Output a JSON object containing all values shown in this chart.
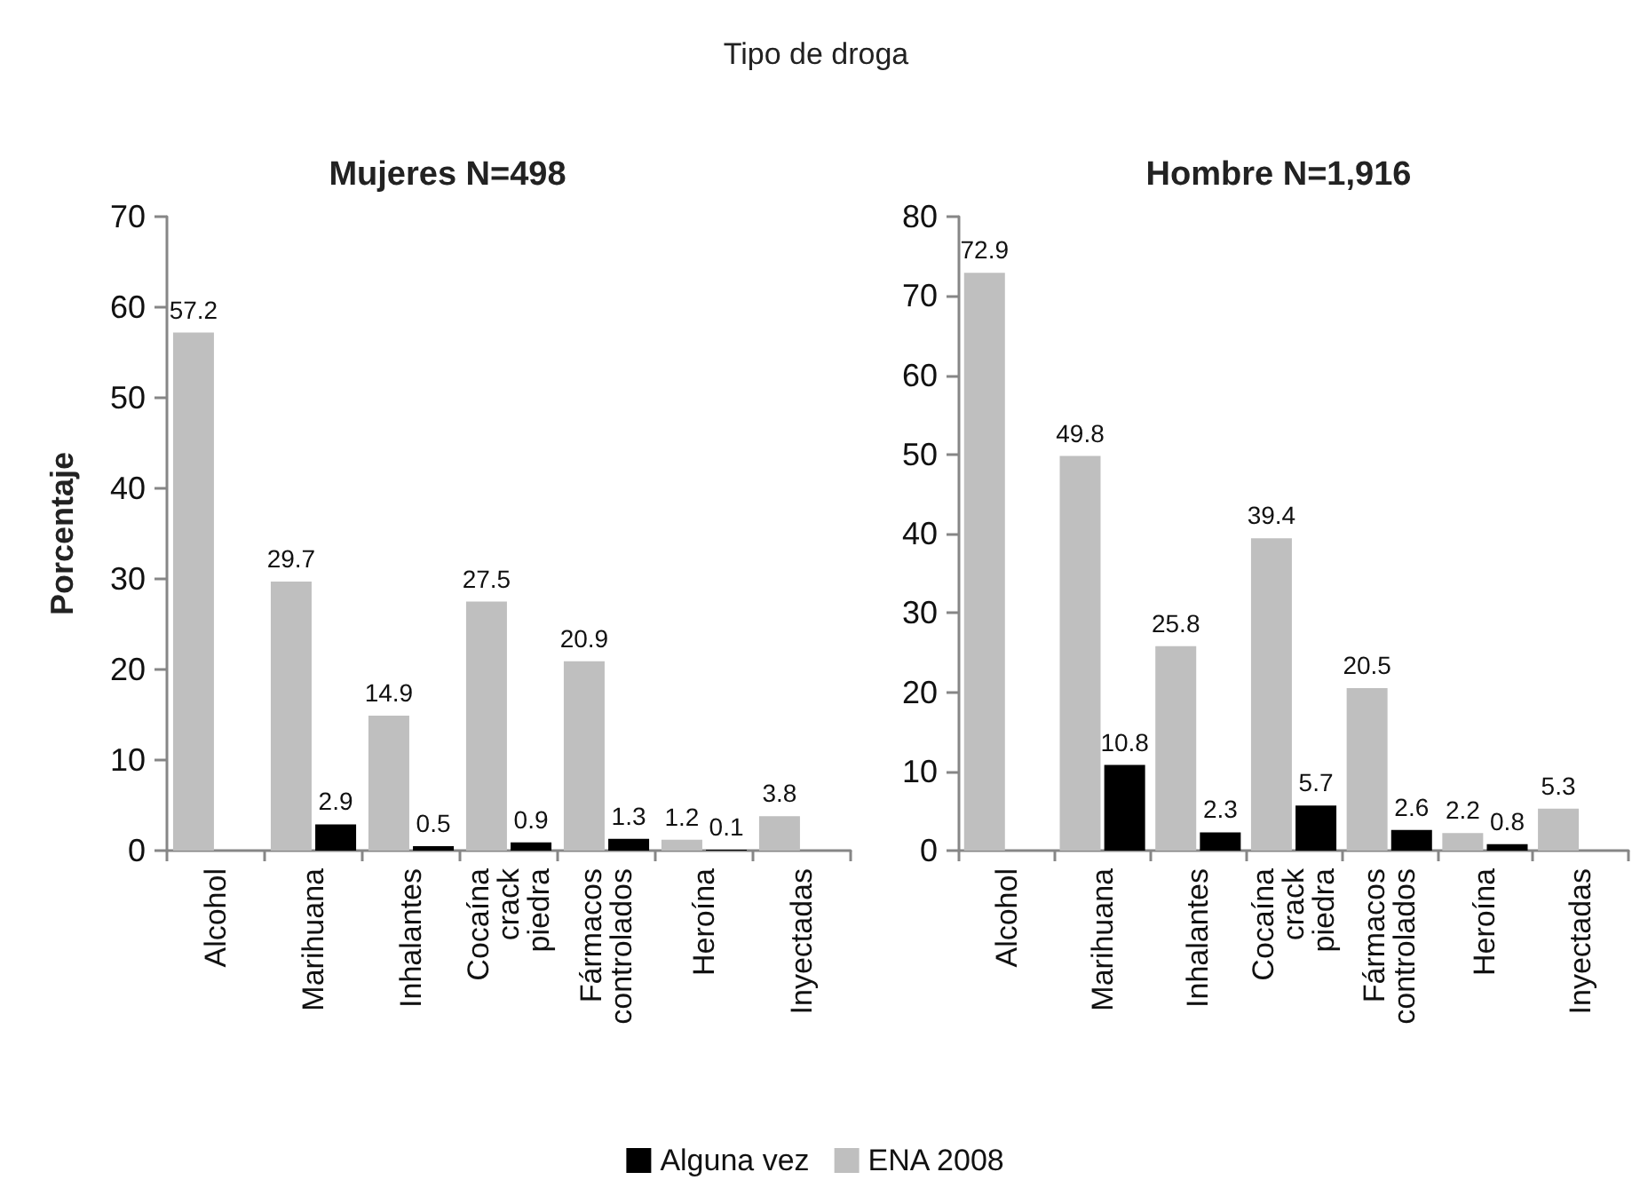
{
  "chart_data": [
    {
      "type": "bar",
      "title": "Mujeres N=498",
      "ylabel": "Porcentaje",
      "annotations": [
        "Tipo de droga"
      ],
      "categories": [
        "Alcohol",
        "Marihuana",
        "Inhalantes",
        "Cocaína\ncrack\npiedra",
        "Fármacos\ncontrolados",
        "Heroína",
        "Inyectadas"
      ],
      "series": [
        {
          "color": "#bfbfbf",
          "values": [
            57.2,
            29.7,
            14.9,
            27.5,
            20.9,
            1.2,
            3.8
          ]
        },
        {
          "color": "#000000",
          "values": [
            null,
            2.9,
            0.5,
            0.9,
            1.3,
            0.1,
            null
          ]
        }
      ],
      "ylim": [
        0,
        70
      ],
      "yticks": [
        0,
        10,
        20,
        30,
        40,
        50,
        60,
        70
      ],
      "data_labels": true
    },
    {
      "type": "bar",
      "title": "Hombre N=1,916",
      "categories": [
        "Alcohol",
        "Marihuana",
        "Inhalantes",
        "Cocaína\ncrack\npiedra",
        "Fármacos\ncontrolados",
        "Heroína",
        "Inyectadas"
      ],
      "series": [
        {
          "name": "ENA 2008",
          "color": "#bfbfbf",
          "values": [
            72.9,
            49.8,
            25.8,
            39.4,
            20.5,
            2.2,
            5.3
          ]
        },
        {
          "name": "Alguna vez",
          "color": "#000000",
          "values": [
            null,
            10.8,
            2.3,
            5.7,
            2.6,
            0.8,
            null
          ]
        }
      ],
      "ylim": [
        0,
        80
      ],
      "yticks": [
        0,
        10,
        20,
        30,
        40,
        50,
        60,
        70,
        80
      ],
      "data_labels": true,
      "legend": "bottom"
    }
  ]
}
